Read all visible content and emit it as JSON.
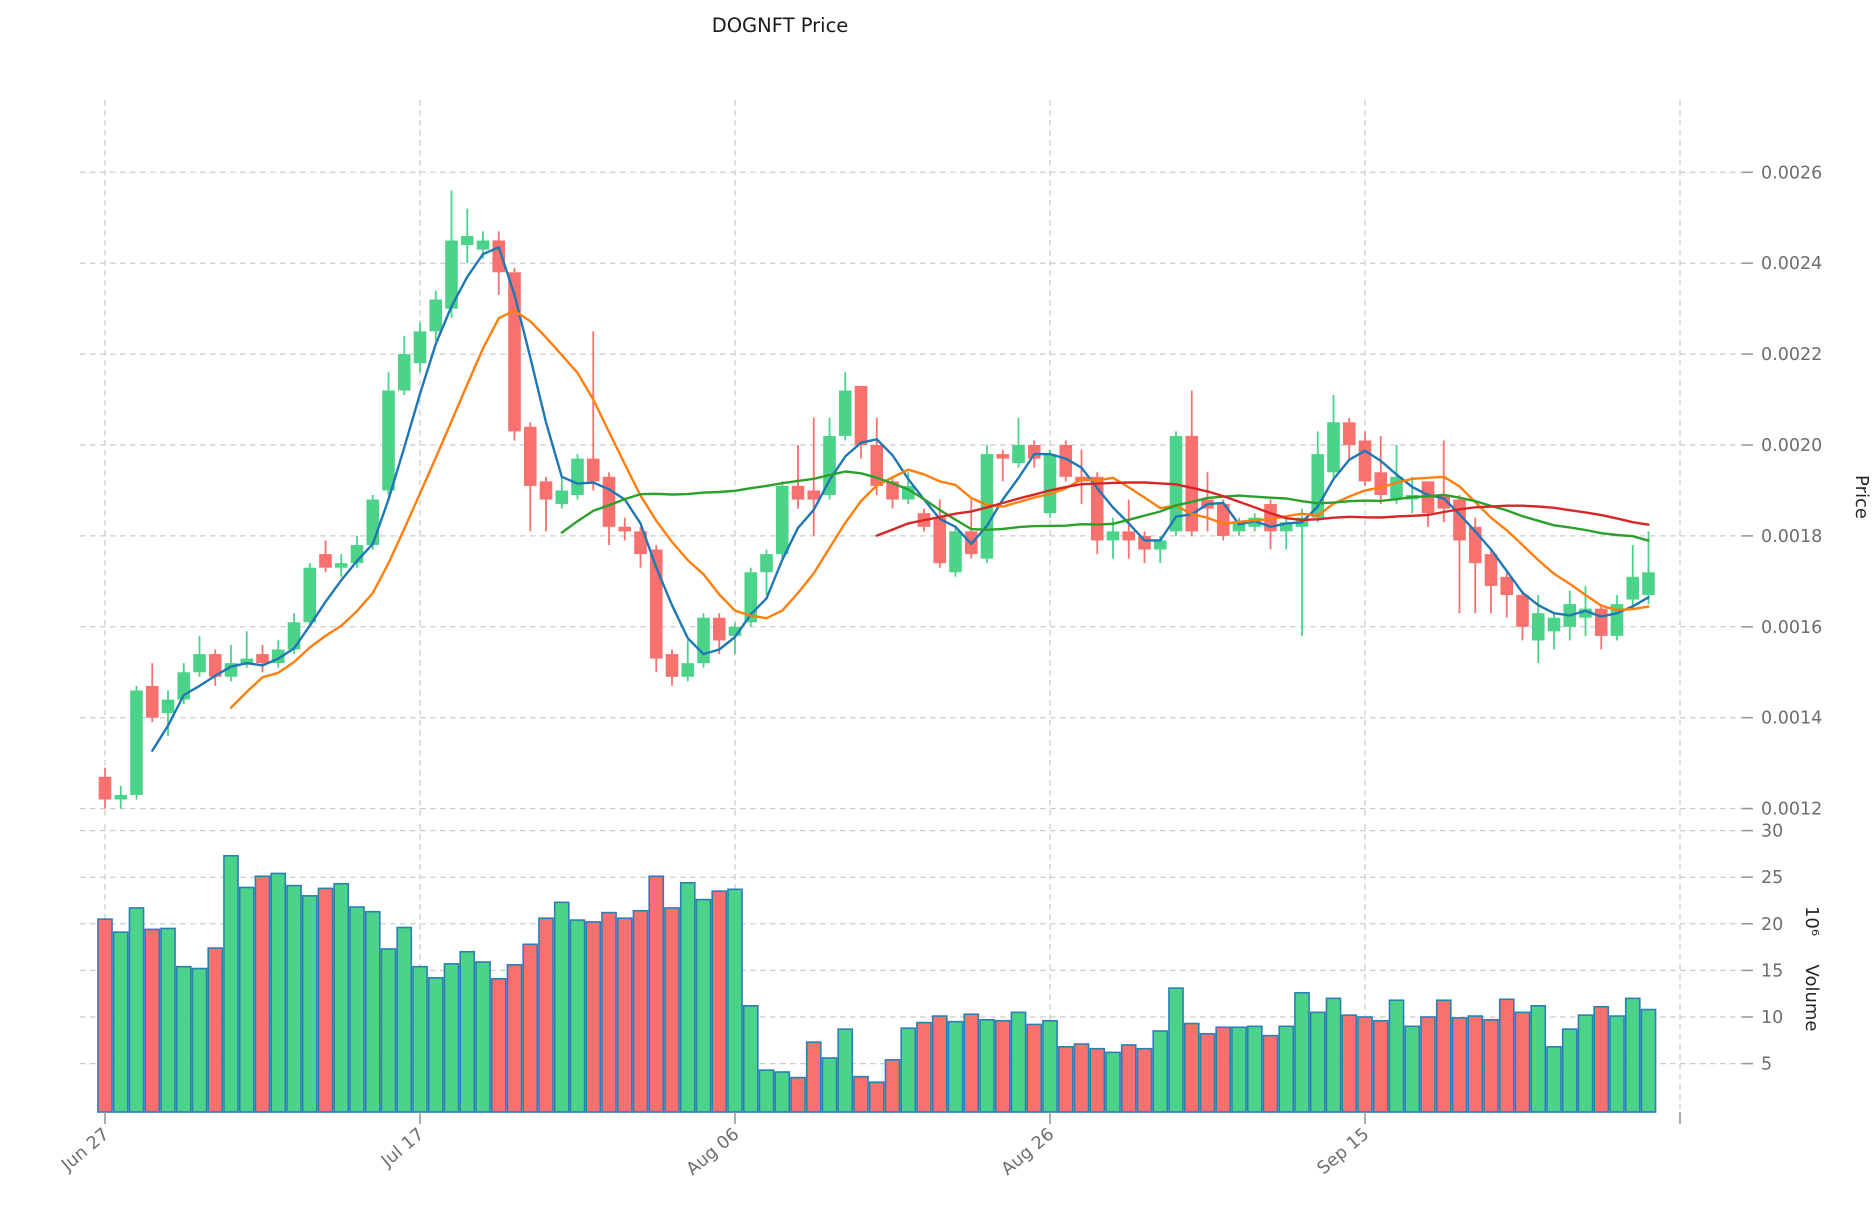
{
  "chart_data": {
    "type": "candlestick",
    "title": "DOGNFT Price",
    "ylabel": "Price",
    "ylabel_lower": "Volume",
    "volume_scale": "10⁶",
    "legend_position": "none",
    "grid": true,
    "price_axis_side": "right",
    "price_tick_labels": [
      "0.0026",
      "0.0024",
      "0.0022",
      "0.0020",
      "0.0018",
      "0.0016",
      "0.0014",
      "0.0012"
    ],
    "volume_ticks": [
      30,
      25,
      20,
      15,
      10,
      5
    ],
    "x_ticks": [
      {
        "label": "Jun 27",
        "index": 0
      },
      {
        "label": "Jul 17",
        "index": 20
      },
      {
        "label": "Aug 06",
        "index": 40
      },
      {
        "label": "Aug 26",
        "index": 60
      },
      {
        "label": "Sep 15",
        "index": 80
      },
      {
        "label": "",
        "index": 100
      }
    ],
    "moving_averages": [
      {
        "name": "sma-fast",
        "window": 4,
        "color": "#1f77b4"
      },
      {
        "name": "sma-mid",
        "window": 9,
        "color": "#ff7f0e"
      },
      {
        "name": "sma-slow",
        "window": 30,
        "color": "#2ca02c"
      },
      {
        "name": "sma-slowest",
        "window": 50,
        "color": "#d62728"
      }
    ],
    "colors": {
      "up": "#4cd38a",
      "down": "#f8716e",
      "volume_edge": "#2a7fb5",
      "grid": "#cbcbcb",
      "tick_label": "#6e6e6e",
      "title": "#1a1a1a"
    },
    "candles_format": [
      "open",
      "high",
      "low",
      "close",
      "volume_millions"
    ],
    "candles": [
      [
        0.00127,
        0.00129,
        0.0012,
        0.00122,
        20.5
      ],
      [
        0.00122,
        0.00125,
        0.0012,
        0.00123,
        19.1
      ],
      [
        0.00123,
        0.00147,
        0.00122,
        0.00146,
        21.7
      ],
      [
        0.00147,
        0.00152,
        0.00139,
        0.0014,
        19.4
      ],
      [
        0.00141,
        0.00146,
        0.00136,
        0.00144,
        19.5
      ],
      [
        0.00144,
        0.00152,
        0.00143,
        0.0015,
        15.4
      ],
      [
        0.0015,
        0.00158,
        0.00149,
        0.00154,
        15.2
      ],
      [
        0.00154,
        0.00155,
        0.00147,
        0.00149,
        17.4
      ],
      [
        0.00149,
        0.00156,
        0.00148,
        0.00152,
        27.3
      ],
      [
        0.00152,
        0.00159,
        0.00151,
        0.00153,
        23.9
      ],
      [
        0.00154,
        0.00156,
        0.0015,
        0.00152,
        25.1
      ],
      [
        0.00152,
        0.00157,
        0.00151,
        0.00155,
        25.4
      ],
      [
        0.00155,
        0.00163,
        0.00154,
        0.00161,
        24.1
      ],
      [
        0.00161,
        0.00174,
        0.0016,
        0.00173,
        23.0
      ],
      [
        0.00176,
        0.00179,
        0.00172,
        0.00173,
        23.8
      ],
      [
        0.00173,
        0.00176,
        0.00171,
        0.00174,
        24.3
      ],
      [
        0.00174,
        0.0018,
        0.00173,
        0.00178,
        21.8
      ],
      [
        0.00178,
        0.00189,
        0.00177,
        0.00188,
        21.3
      ],
      [
        0.0019,
        0.00216,
        0.00189,
        0.00212,
        17.3
      ],
      [
        0.00212,
        0.00224,
        0.00211,
        0.0022,
        19.6
      ],
      [
        0.00218,
        0.00227,
        0.00216,
        0.00225,
        15.4
      ],
      [
        0.00225,
        0.00234,
        0.00223,
        0.00232,
        14.2
      ],
      [
        0.0023,
        0.00256,
        0.00228,
        0.00245,
        15.7
      ],
      [
        0.00244,
        0.00252,
        0.0024,
        0.00246,
        17.0
      ],
      [
        0.00243,
        0.00247,
        0.00241,
        0.00245,
        15.9
      ],
      [
        0.00245,
        0.00247,
        0.00233,
        0.00238,
        14.1
      ],
      [
        0.00238,
        0.00239,
        0.00201,
        0.00203,
        15.6
      ],
      [
        0.00204,
        0.00205,
        0.00181,
        0.00191,
        17.8
      ],
      [
        0.00192,
        0.00193,
        0.00181,
        0.00188,
        20.6
      ],
      [
        0.00187,
        0.00193,
        0.00186,
        0.0019,
        22.3
      ],
      [
        0.00189,
        0.00198,
        0.00188,
        0.00197,
        20.4
      ],
      [
        0.00197,
        0.00225,
        0.0019,
        0.00192,
        20.2
      ],
      [
        0.00193,
        0.00194,
        0.00178,
        0.00182,
        21.2
      ],
      [
        0.00182,
        0.00184,
        0.00179,
        0.00181,
        20.6
      ],
      [
        0.00181,
        0.00182,
        0.00173,
        0.00176,
        21.4
      ],
      [
        0.00177,
        0.00178,
        0.0015,
        0.00153,
        25.1
      ],
      [
        0.00154,
        0.00155,
        0.00147,
        0.00149,
        21.7
      ],
      [
        0.00149,
        0.00157,
        0.00148,
        0.00152,
        24.4
      ],
      [
        0.00152,
        0.00163,
        0.00151,
        0.00162,
        22.6
      ],
      [
        0.00162,
        0.00163,
        0.00154,
        0.00157,
        23.5
      ],
      [
        0.00158,
        0.00161,
        0.00154,
        0.0016,
        23.7
      ],
      [
        0.00161,
        0.00173,
        0.0016,
        0.00172,
        11.2
      ],
      [
        0.00172,
        0.00177,
        0.00167,
        0.00176,
        4.3
      ],
      [
        0.00176,
        0.00192,
        0.00175,
        0.00191,
        4.1
      ],
      [
        0.00191,
        0.002,
        0.00186,
        0.00188,
        3.5
      ],
      [
        0.0019,
        0.00206,
        0.0018,
        0.00188,
        7.3
      ],
      [
        0.00189,
        0.00206,
        0.00188,
        0.00202,
        5.6
      ],
      [
        0.00202,
        0.00216,
        0.00201,
        0.00212,
        8.7
      ],
      [
        0.00213,
        0.00213,
        0.00197,
        0.002,
        3.6
      ],
      [
        0.002,
        0.00206,
        0.00189,
        0.00191,
        3.0
      ],
      [
        0.00192,
        0.00193,
        0.00186,
        0.00188,
        5.4
      ],
      [
        0.00188,
        0.00194,
        0.00187,
        0.00191,
        8.8
      ],
      [
        0.00185,
        0.00186,
        0.00181,
        0.00182,
        9.4
      ],
      [
        0.00184,
        0.00188,
        0.00173,
        0.00174,
        10.1
      ],
      [
        0.00172,
        0.00182,
        0.00171,
        0.00181,
        9.5
      ],
      [
        0.00181,
        0.00188,
        0.00175,
        0.00176,
        10.3
      ],
      [
        0.00175,
        0.002,
        0.00174,
        0.00198,
        9.7
      ],
      [
        0.00198,
        0.00199,
        0.00192,
        0.00197,
        9.6
      ],
      [
        0.00196,
        0.00206,
        0.00195,
        0.002,
        10.5
      ],
      [
        0.002,
        0.00201,
        0.00195,
        0.00197,
        9.2
      ],
      [
        0.00185,
        0.00199,
        0.00184,
        0.00198,
        9.6
      ],
      [
        0.002,
        0.00201,
        0.00192,
        0.00193,
        6.8
      ],
      [
        0.00193,
        0.00199,
        0.00187,
        0.00192,
        7.1
      ],
      [
        0.00193,
        0.00194,
        0.00176,
        0.00179,
        6.6
      ],
      [
        0.00179,
        0.00184,
        0.00175,
        0.00181,
        6.2
      ],
      [
        0.00181,
        0.00188,
        0.00175,
        0.00179,
        7.0
      ],
      [
        0.0018,
        0.00181,
        0.00174,
        0.00177,
        6.6
      ],
      [
        0.00177,
        0.0018,
        0.00174,
        0.00179,
        8.5
      ],
      [
        0.00181,
        0.00203,
        0.0018,
        0.00202,
        13.1
      ],
      [
        0.00202,
        0.00212,
        0.0018,
        0.00181,
        9.3
      ],
      [
        0.00188,
        0.00194,
        0.00181,
        0.00186,
        8.2
      ],
      [
        0.00187,
        0.00188,
        0.00179,
        0.0018,
        8.9
      ],
      [
        0.00181,
        0.00184,
        0.0018,
        0.00183,
        8.9
      ],
      [
        0.00182,
        0.00185,
        0.00181,
        0.00184,
        9.0
      ],
      [
        0.00187,
        0.00188,
        0.00177,
        0.00181,
        8.0
      ],
      [
        0.00181,
        0.00184,
        0.00177,
        0.00183,
        9.0
      ],
      [
        0.00182,
        0.00186,
        0.00158,
        0.00184,
        12.6
      ],
      [
        0.00184,
        0.00203,
        0.00183,
        0.00198,
        10.5
      ],
      [
        0.00194,
        0.00211,
        0.00193,
        0.00205,
        12.0
      ],
      [
        0.00205,
        0.00206,
        0.00197,
        0.002,
        10.2
      ],
      [
        0.00201,
        0.00203,
        0.00191,
        0.00192,
        10.0
      ],
      [
        0.00194,
        0.00202,
        0.00187,
        0.00189,
        9.6
      ],
      [
        0.00188,
        0.002,
        0.00187,
        0.00193,
        11.8
      ],
      [
        0.00188,
        0.00193,
        0.00185,
        0.00189,
        9.0
      ],
      [
        0.00192,
        0.00192,
        0.00182,
        0.00185,
        10.0
      ],
      [
        0.00189,
        0.00201,
        0.00183,
        0.00186,
        11.8
      ],
      [
        0.00188,
        0.00189,
        0.00163,
        0.00179,
        9.9
      ],
      [
        0.00182,
        0.00184,
        0.00163,
        0.00174,
        10.1
      ],
      [
        0.00176,
        0.00177,
        0.00163,
        0.00169,
        9.7
      ],
      [
        0.00171,
        0.00172,
        0.00162,
        0.00167,
        11.9
      ],
      [
        0.00167,
        0.00168,
        0.00157,
        0.0016,
        10.5
      ],
      [
        0.00157,
        0.00167,
        0.00152,
        0.00163,
        11.2
      ],
      [
        0.00159,
        0.00163,
        0.00155,
        0.00162,
        6.8
      ],
      [
        0.0016,
        0.00168,
        0.00157,
        0.00165,
        8.7
      ],
      [
        0.00162,
        0.00169,
        0.00158,
        0.00164,
        10.2
      ],
      [
        0.00164,
        0.00165,
        0.00155,
        0.00158,
        11.1
      ],
      [
        0.00158,
        0.00167,
        0.00157,
        0.00165,
        10.1
      ],
      [
        0.00166,
        0.00178,
        0.00164,
        0.00171,
        12.0
      ],
      [
        0.00167,
        0.00181,
        0.00165,
        0.00172,
        10.8
      ]
    ]
  }
}
